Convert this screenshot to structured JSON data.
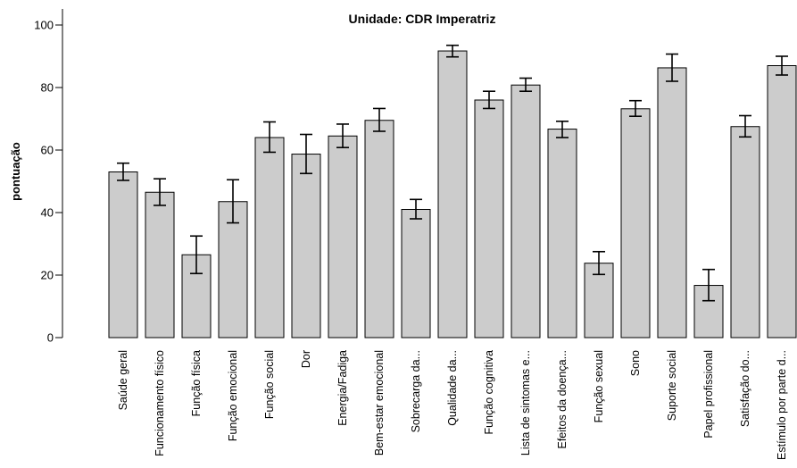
{
  "chart_data": {
    "type": "bar",
    "title": "Unidade: CDR Imperatriz",
    "ylabel": "pontuação",
    "xlabel": "",
    "ylim": [
      0,
      100
    ],
    "yticks": [
      0,
      20,
      40,
      60,
      80,
      100
    ],
    "grid": false,
    "legend": "none",
    "bar_color": "#cccccc",
    "categories": [
      "Saúde geral",
      "Funcionamento físico",
      "Função física",
      "Função emocional",
      "Função social",
      "Dor",
      "Energia/Fadiga",
      "Bem-estar emocional",
      "Sobrecarga da...",
      "Qualidade da...",
      "Função cognitiva",
      "Lista de sintomas e...",
      "Efeitos da doença...",
      "Função sexual",
      "Sono",
      "Suporte social",
      "Papel profissional",
      "Satisfação do...",
      "Estímulo por parte d..."
    ],
    "values": [
      53,
      46.5,
      26.5,
      43.5,
      64,
      58.7,
      64.5,
      69.5,
      41,
      91.7,
      76,
      80.8,
      66.7,
      23.8,
      73.2,
      86.3,
      16.7,
      67.5,
      87
    ],
    "error_low": [
      50.3,
      42.3,
      20.5,
      36.7,
      59.3,
      52.5,
      60.8,
      66,
      38,
      89.8,
      73.3,
      78.8,
      64,
      20.2,
      70.8,
      82,
      11.8,
      64.2,
      84
    ],
    "error_high": [
      55.8,
      50.8,
      32.5,
      50.5,
      69,
      65,
      68.3,
      73.3,
      44.2,
      93.5,
      78.8,
      83,
      69.2,
      27.5,
      75.8,
      90.7,
      21.8,
      71,
      90
    ]
  }
}
